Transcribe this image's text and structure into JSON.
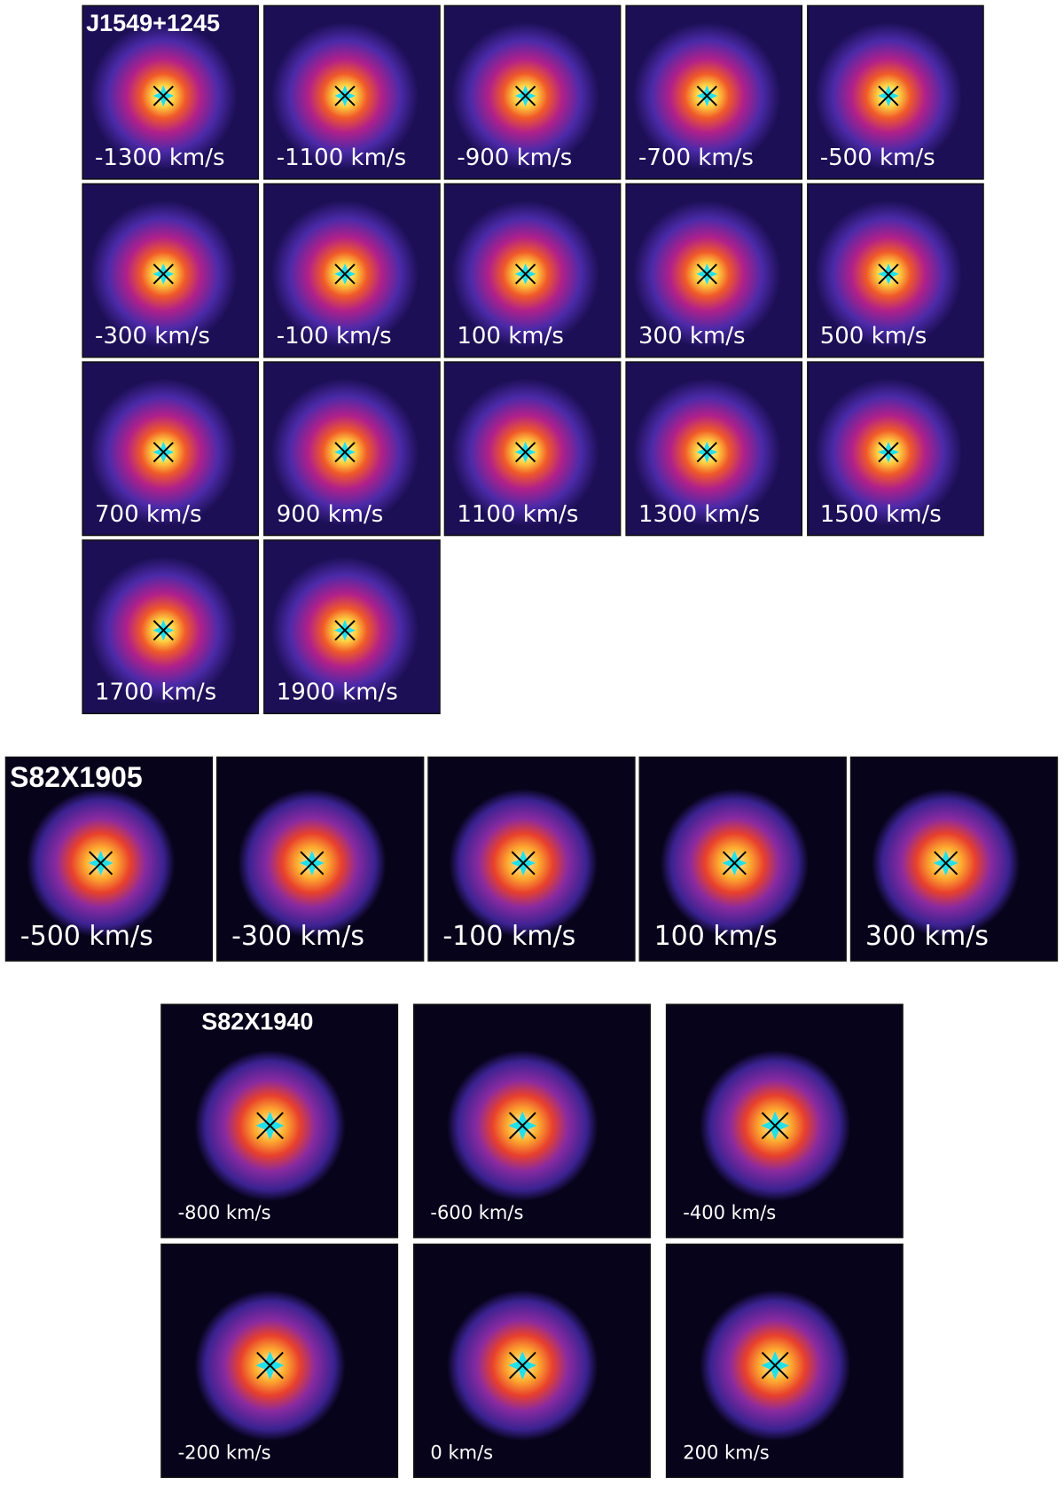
{
  "groups": [
    {
      "name": "J1549+1245",
      "panels": [
        "-1300 km/s",
        "-1100 km/s",
        "-900 km/s",
        "-700 km/s",
        "-500 km/s",
        "-300 km/s",
        "-100 km/s",
        "100 km/s",
        "300 km/s",
        "500 km/s",
        "700 km/s",
        "900 km/s",
        "1100 km/s",
        "1300 km/s",
        "1500 km/s",
        "1700 km/s",
        "1900 km/s"
      ]
    },
    {
      "name": "S82X1905",
      "panels": [
        "-500 km/s",
        "-300 km/s",
        "-100 km/s",
        "100 km/s",
        "300 km/s"
      ]
    },
    {
      "name": "S82X1940",
      "panels": [
        "-800 km/s",
        "-600 km/s",
        "-400 km/s",
        "-200 km/s",
        "0 km/s",
        "200 km/s"
      ]
    }
  ]
}
